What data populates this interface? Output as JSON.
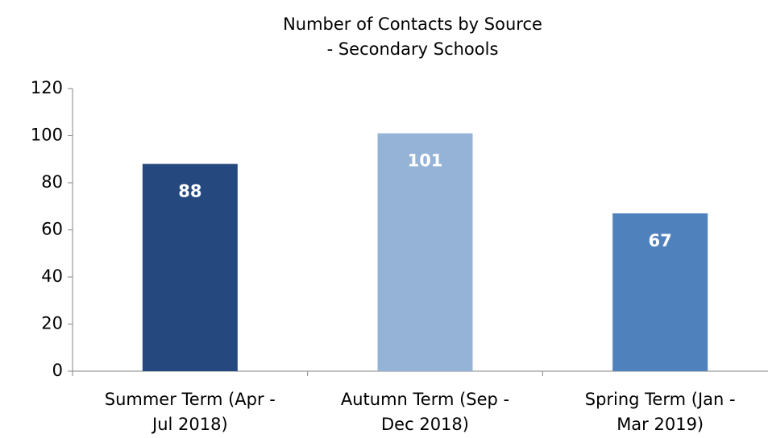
{
  "chart_data": {
    "type": "bar",
    "title": "Number of Contacts by Source",
    "subtitle": "- Secondary Schools",
    "categories": [
      "Summer Term (Apr - Jul 2018)",
      "Autumn Term (Sep - Dec 2018)",
      "Spring Term (Jan - Mar 2019)"
    ],
    "values": [
      88,
      101,
      67
    ],
    "colors": [
      "#25497f",
      "#95b3d7",
      "#4f81bd"
    ],
    "ylim": [
      0,
      120
    ],
    "yticks": [
      0,
      20,
      40,
      60,
      80,
      100,
      120
    ],
    "grid": false
  }
}
